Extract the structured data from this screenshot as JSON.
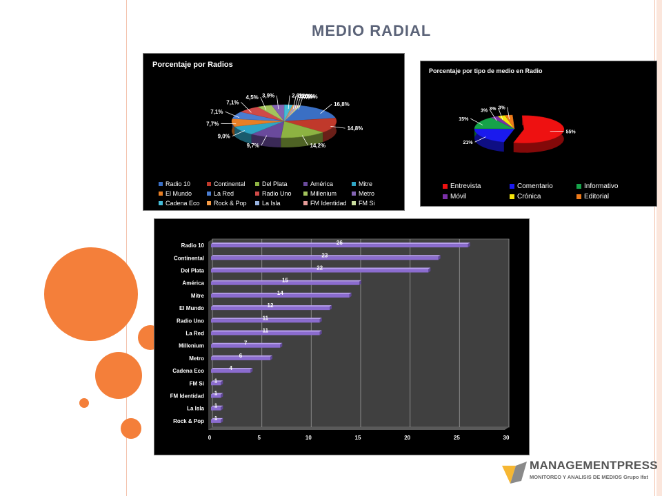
{
  "page": {
    "title": "MEDIO RADIAL",
    "logo": {
      "name": "MANAGEMENTPRESS",
      "tagline": "MONITOREO Y ANALISIS DE MEDIOS Grupo Ifat"
    }
  },
  "colors": {
    "accent": "#f47f3a",
    "title": "#5b6378",
    "bar": "#8b6ccf",
    "panel_bg": "#000000"
  },
  "chart_data": [
    {
      "type": "pie",
      "title": "Porcentaje por Radios",
      "slices": [
        {
          "label": "Radio 10",
          "value": 16.8,
          "display": "16,8%",
          "color": "#3a6fc4"
        },
        {
          "label": "Continental",
          "value": 14.8,
          "display": "14,8%",
          "color": "#c0392b"
        },
        {
          "label": "Del Plata",
          "value": 14.2,
          "display": "14,2%",
          "color": "#8db342"
        },
        {
          "label": "América",
          "value": 9.7,
          "display": "9,7%",
          "color": "#6a4a9c"
        },
        {
          "label": "Mitre",
          "value": 9.0,
          "display": "9,0%",
          "color": "#2fa5c4"
        },
        {
          "label": "El Mundo",
          "value": 7.7,
          "display": "7,7%",
          "color": "#e87f24"
        },
        {
          "label": "La Red",
          "value": 7.1,
          "display": "7,1%",
          "color": "#4a7dd1"
        },
        {
          "label": "Radio Uno",
          "value": 7.1,
          "display": "7,1%",
          "color": "#cf4a48"
        },
        {
          "label": "Millenium",
          "value": 4.5,
          "display": "4,5%",
          "color": "#a3c45c"
        },
        {
          "label": "Metro",
          "value": 3.9,
          "display": "3,9%",
          "color": "#8464b3"
        },
        {
          "label": "Cadena Eco",
          "value": 2.6,
          "display": "2,6%",
          "color": "#45bcd8"
        },
        {
          "label": "Rock & Pop",
          "value": 0.6,
          "display": "0,6%",
          "color": "#f59a45"
        },
        {
          "label": "La Isla",
          "value": 0.6,
          "display": "0,6%",
          "color": "#98b3e0"
        },
        {
          "label": "FM Identidad",
          "value": 0.6,
          "display": "0,6%",
          "color": "#e59b98"
        },
        {
          "label": "FM Si",
          "value": 0.6,
          "display": "0,6%",
          "color": "#c9dc9e"
        }
      ]
    },
    {
      "type": "pie",
      "title": "Porcentaje por tipo de medio en Radio",
      "slices": [
        {
          "label": "Entrevista",
          "value": 55,
          "display": "55%",
          "color": "#ee1111"
        },
        {
          "label": "Comentario",
          "value": 21,
          "display": "21%",
          "color": "#1a1aee"
        },
        {
          "label": "Informativo",
          "value": 15,
          "display": "15%",
          "color": "#16a34a"
        },
        {
          "label": "Móvil",
          "value": 3,
          "display": "3%",
          "color": "#7b2fa8"
        },
        {
          "label": "Crónica",
          "value": 3,
          "display": "3%",
          "color": "#f5e50a"
        },
        {
          "label": "Editorial",
          "value": 3,
          "display": "3%",
          "color": "#ee7a1a"
        }
      ]
    },
    {
      "type": "bar",
      "orientation": "horizontal",
      "categories": [
        "Radio 10",
        "Continental",
        "Del Plata",
        "América",
        "Mitre",
        "El Mundo",
        "Radio Uno",
        "La Red",
        "Millenium",
        "Metro",
        "Cadena Eco",
        "FM Si",
        "FM Identidad",
        "La Isla",
        "Rock & Pop"
      ],
      "values": [
        26,
        23,
        22,
        15,
        14,
        12,
        11,
        11,
        7,
        6,
        4,
        1,
        1,
        1,
        1
      ],
      "xlim": [
        0,
        30
      ],
      "xticks": [
        0,
        5,
        10,
        15,
        20,
        25,
        30
      ],
      "grid": true
    }
  ]
}
